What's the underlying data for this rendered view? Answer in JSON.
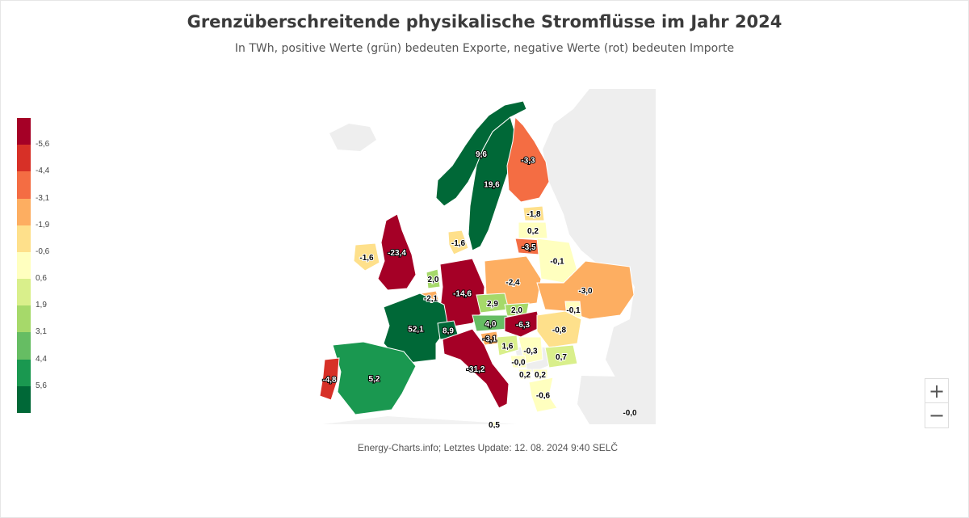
{
  "header": {
    "title": "Grenzüberschreitende physikalische Stromflüsse im Jahr 2024",
    "subtitle": "In TWh, positive Werte (grün) bedeuten Exporte, negative Werte (rot) bedeuten Importe"
  },
  "legend": {
    "colors": [
      "#a50026",
      "#d73027",
      "#f46d43",
      "#fdae61",
      "#fee08b",
      "#ffffbf",
      "#d9ef8b",
      "#a6d96a",
      "#66bd63",
      "#1a9850",
      "#006837"
    ],
    "ticks": [
      "-5,6",
      "-4,4",
      "-3,1",
      "-1,9",
      "-0,6",
      "0,6",
      "1,9",
      "3,1",
      "4,4",
      "5,6"
    ]
  },
  "map_values": [
    {
      "id": "NO",
      "label": "9,6",
      "value": 9.6
    },
    {
      "id": "SE",
      "label": "19,6",
      "value": 19.6
    },
    {
      "id": "FI",
      "label": "-3,3",
      "value": -3.3
    },
    {
      "id": "EE",
      "label": "-1,8",
      "value": -1.8
    },
    {
      "id": "LV",
      "label": "0,2",
      "value": 0.2
    },
    {
      "id": "LT",
      "label": "-3,5",
      "value": -3.5
    },
    {
      "id": "DK",
      "label": "-1,6",
      "value": -1.6
    },
    {
      "id": "IE",
      "label": "-1,6",
      "value": -1.6
    },
    {
      "id": "GB",
      "label": "-23,4",
      "value": -23.4
    },
    {
      "id": "NL",
      "label": "2,0",
      "value": 2.0
    },
    {
      "id": "BE",
      "label": "-2,1",
      "value": -2.1
    },
    {
      "id": "DE",
      "label": "-14,6",
      "value": -14.6
    },
    {
      "id": "PL",
      "label": "-2,4",
      "value": -2.4
    },
    {
      "id": "BY",
      "label": "-0,1",
      "value": -0.1
    },
    {
      "id": "UA",
      "label": "-3,0",
      "value": -3.0
    },
    {
      "id": "MD",
      "label": "-0,1",
      "value": -0.1
    },
    {
      "id": "CZ",
      "label": "2,9",
      "value": 2.9
    },
    {
      "id": "SK",
      "label": "2,0",
      "value": 2.0
    },
    {
      "id": "AT",
      "label": "4,0",
      "value": 4.0
    },
    {
      "id": "HU",
      "label": "-6,3",
      "value": -6.3
    },
    {
      "id": "RO",
      "label": "-0,8",
      "value": -0.8
    },
    {
      "id": "FR",
      "label": "52,1",
      "value": 52.1
    },
    {
      "id": "CH",
      "label": "8,9",
      "value": 8.9
    },
    {
      "id": "IT",
      "label": "-31,2",
      "value": -31.2
    },
    {
      "id": "SI",
      "label": "-3,1",
      "value": -3.1
    },
    {
      "id": "HR",
      "label": "1,6",
      "value": 1.6
    },
    {
      "id": "RS",
      "label": "-0,3",
      "value": -0.3
    },
    {
      "id": "BA",
      "label": "-0,0",
      "value": -0.0
    },
    {
      "id": "BG",
      "label": "0,7",
      "value": 0.7
    },
    {
      "id": "ME",
      "label": "0,2",
      "value": 0.2
    },
    {
      "id": "MK",
      "label": "0,2",
      "value": 0.2
    },
    {
      "id": "GR",
      "label": "-0,6",
      "value": -0.6
    },
    {
      "id": "ES",
      "label": "5,2",
      "value": 5.2
    },
    {
      "id": "PT",
      "label": "-4,8",
      "value": -4.8
    },
    {
      "id": "MT",
      "label": "0,5",
      "value": 0.5
    },
    {
      "id": "TR",
      "label": "-0,0",
      "value": -0.0
    }
  ],
  "footer": {
    "credit": "Energy-Charts.info; Letztes Update: 12. 08. 2024 9:40 SELČ"
  },
  "zoom": {
    "in_label": "+",
    "out_label": "−"
  }
}
